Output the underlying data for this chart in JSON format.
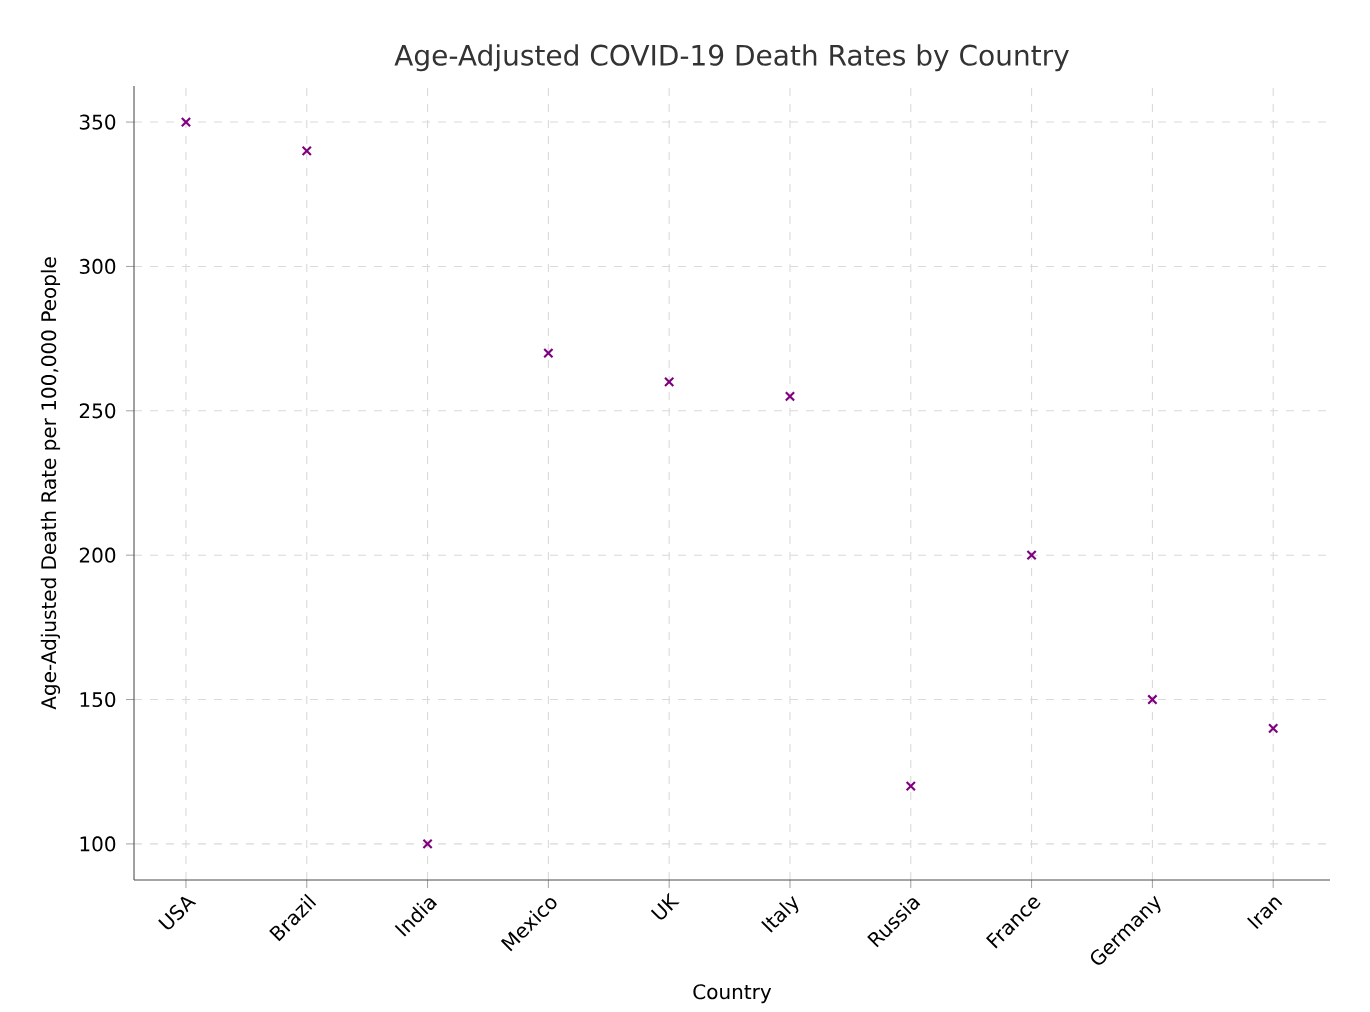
{
  "chart_data": {
    "type": "scatter",
    "title": "Age-Adjusted COVID-19 Death Rates by Country",
    "xlabel": "Country",
    "ylabel": "Age-Adjusted Death Rate per 100,000 People",
    "categories": [
      "USA",
      "Brazil",
      "India",
      "Mexico",
      "UK",
      "Italy",
      "Russia",
      "France",
      "Germany",
      "Iran"
    ],
    "values": [
      350,
      340,
      100,
      270,
      260,
      255,
      120,
      200,
      150,
      140
    ],
    "color": "#800080",
    "marker": "cross",
    "ylim": [
      87.5,
      362.5
    ],
    "yticks": [
      100,
      150,
      200,
      250,
      300,
      350
    ],
    "grid": true
  }
}
